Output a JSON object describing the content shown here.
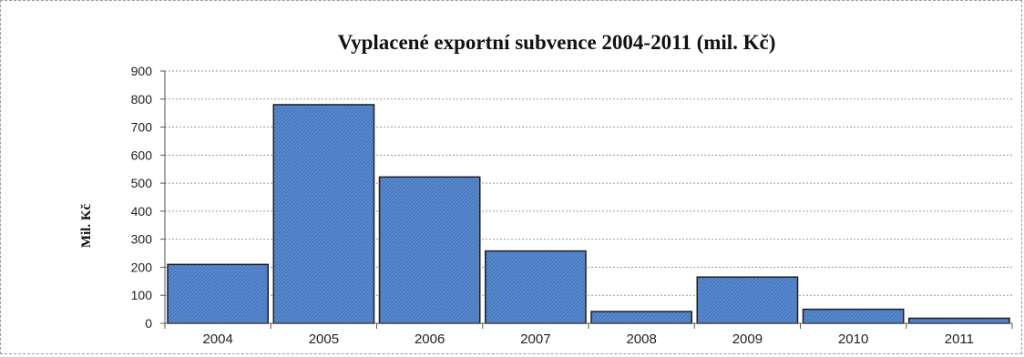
{
  "chart_data": {
    "type": "bar",
    "title": "Vyplacené exportní subvence 2004-2011 (mil. Kč)",
    "xlabel": "",
    "ylabel": "Mil. Kč",
    "categories": [
      "2004",
      "2005",
      "2006",
      "2007",
      "2008",
      "2009",
      "2010",
      "2011"
    ],
    "values": [
      210,
      780,
      522,
      258,
      42,
      165,
      50,
      18
    ],
    "ylim": [
      0,
      900
    ],
    "yticks": [
      0,
      100,
      200,
      300,
      400,
      500,
      600,
      700,
      800,
      900
    ],
    "grid": true,
    "legend": "none",
    "bar_color": "#4f81bd",
    "bar_edge_color": "#1f1f1f"
  }
}
